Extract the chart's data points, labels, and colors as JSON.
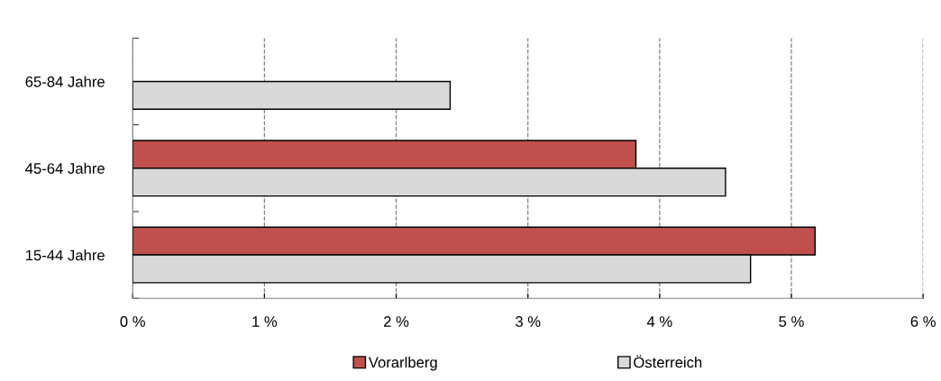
{
  "chart_data": {
    "type": "bar",
    "orientation": "horizontal",
    "categories": [
      "65-84 Jahre",
      "45-64 Jahre",
      "15-44 Jahre"
    ],
    "series": [
      {
        "name": "Vorarlberg",
        "color": "#c0504d",
        "values": [
          null,
          3.82,
          5.18
        ]
      },
      {
        "name": "Österreich",
        "color": "#d9d9d9",
        "values": [
          2.41,
          4.5,
          4.69
        ]
      }
    ],
    "xlim": [
      0,
      6
    ],
    "xticks": [
      {
        "value": 0,
        "label": "0 %"
      },
      {
        "value": 1,
        "label": "1 %"
      },
      {
        "value": 2,
        "label": "2 %"
      },
      {
        "value": 3,
        "label": "3 %"
      },
      {
        "value": 4,
        "label": "4 %"
      },
      {
        "value": 5,
        "label": "5 %"
      },
      {
        "value": 6,
        "label": "6 %"
      }
    ],
    "grid": "x",
    "legend": "bottom"
  }
}
